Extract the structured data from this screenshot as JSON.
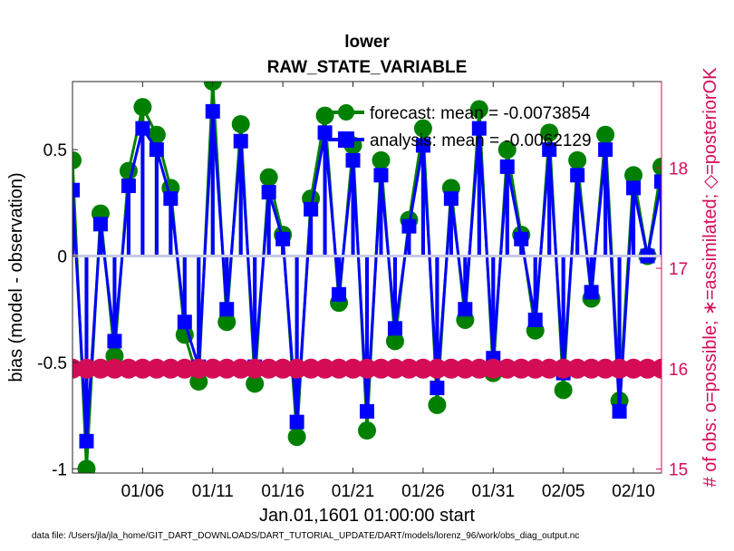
{
  "chart_data": {
    "type": "scatter",
    "title": "lower",
    "subtitle": "RAW_STATE_VARIABLE",
    "xlabel": "Jan.01,1601 01:00:00 start",
    "ylabel": "bias (model - observation)",
    "y2label": "# of obs: o=possible; ∗=assimilated; ◇=posteriorOK",
    "footer": "data file: /Users/jla/jla_home/GIT_DART_DOWNLOADS/DART_TUTORIAL_UPDATE/DART/models/lorenz_96/work/obs_diag_output.nc",
    "x_ticks": [
      "01/06",
      "01/11",
      "01/16",
      "01/21",
      "01/26",
      "01/31",
      "02/05",
      "02/10"
    ],
    "y_ticks": [
      "-1",
      "-0.5",
      "0",
      "0.5"
    ],
    "y2_ticks": [
      "15",
      "16",
      "17",
      "18"
    ],
    "xlim": [
      0,
      42
    ],
    "ylim": [
      -1.02,
      0.82
    ],
    "y2lim": [
      14.96,
      18.86
    ],
    "x_tick_values": [
      5,
      10,
      15,
      20,
      25,
      30,
      35,
      40
    ],
    "y_tick_values": [
      -1,
      -0.5,
      0,
      0.5
    ],
    "y2_tick_values": [
      15,
      16,
      17,
      18
    ],
    "grid": false,
    "legend_position": "top-right",
    "series": [
      {
        "name": "forecast: mean = -0.0073854",
        "color": "#008000",
        "marker": "circle",
        "values": [
          0.45,
          -1.0,
          0.2,
          -0.47,
          0.4,
          0.7,
          0.57,
          0.32,
          -0.37,
          -0.59,
          0.82,
          -0.31,
          0.62,
          -0.6,
          0.37,
          0.1,
          -0.85,
          0.27,
          0.66,
          -0.22,
          0.52,
          -0.82,
          0.45,
          -0.4,
          0.17,
          0.6,
          -0.7,
          0.32,
          -0.3,
          0.69,
          -0.55,
          0.5,
          0.1,
          -0.35,
          0.58,
          -0.63,
          0.45,
          -0.2,
          0.57,
          -0.68,
          0.38,
          0.0,
          0.42
        ]
      },
      {
        "name": "analysis: mean = -0.0062129",
        "color": "#0000ff",
        "marker": "square",
        "values": [
          0.31,
          -0.87,
          0.15,
          -0.4,
          0.33,
          0.6,
          0.5,
          0.27,
          -0.31,
          -0.52,
          0.68,
          -0.25,
          0.54,
          -0.52,
          0.3,
          0.08,
          -0.78,
          0.22,
          0.58,
          -0.18,
          0.45,
          -0.73,
          0.38,
          -0.34,
          0.14,
          0.52,
          -0.62,
          0.27,
          -0.25,
          0.6,
          -0.48,
          0.42,
          0.08,
          -0.3,
          0.5,
          -0.55,
          0.38,
          -0.17,
          0.5,
          -0.73,
          0.32,
          0.0,
          0.35
        ]
      },
      {
        "name": "# of obs (possible)",
        "color": "#d40c56",
        "marker": "circle",
        "axis": "right",
        "constant": 16
      }
    ],
    "zero_line_color": "#c8c8e6"
  }
}
